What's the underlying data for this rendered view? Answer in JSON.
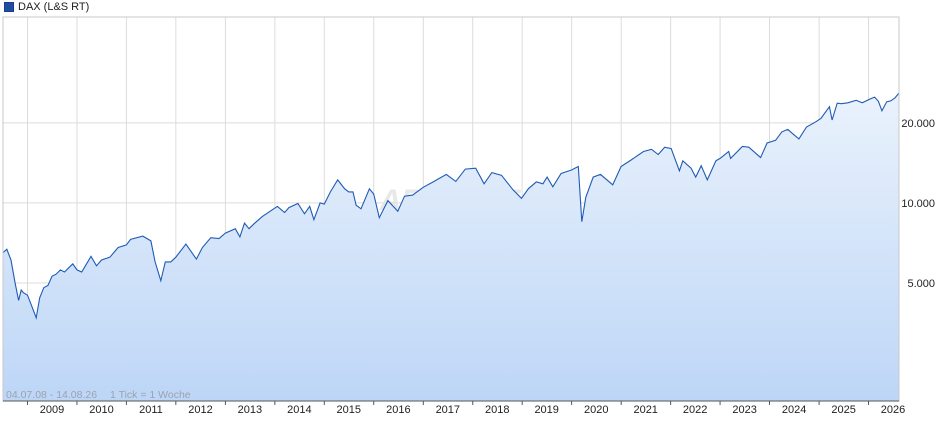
{
  "legend": {
    "label": "DAX (L&S RT)",
    "color": "#1f4e9e"
  },
  "footer": {
    "range": "04.07.08 - 14.08.26",
    "tick": "1 Tick = 1 Woche"
  },
  "watermark": "ARIVA.DE",
  "colors": {
    "line": "#1f5bb5",
    "fill_top": "#eaf2fc",
    "fill_bottom": "#bdd6f7",
    "grid": "#dcdcdc"
  },
  "chart_data": {
    "type": "area",
    "title": "",
    "xlabel": "",
    "ylabel": "",
    "y_scale": "log",
    "ylim": [
      1800,
      50000
    ],
    "xlim": [
      "2008-07-04",
      "2026-08-14"
    ],
    "x_ticks": [
      "2009",
      "2010",
      "2011",
      "2012",
      "2013",
      "2014",
      "2015",
      "2016",
      "2017",
      "2018",
      "2019",
      "2020",
      "2021",
      "2022",
      "2023",
      "2024",
      "2025",
      "2026"
    ],
    "y_ticks": [
      {
        "value": 5000,
        "label": "5.000"
      },
      {
        "value": 10000,
        "label": "10.000"
      },
      {
        "value": 20000,
        "label": "20.000"
      }
    ],
    "grid": true,
    "legend_position": "top-left",
    "series": [
      {
        "name": "DAX (L&S RT)",
        "x": [
          "2008-07-04",
          "2008-08-01",
          "2008-09-01",
          "2008-10-01",
          "2008-10-27",
          "2008-11-15",
          "2008-12-01",
          "2009-01-01",
          "2009-02-01",
          "2009-03-06",
          "2009-04-01",
          "2009-05-01",
          "2009-06-01",
          "2009-07-01",
          "2009-08-01",
          "2009-09-01",
          "2009-10-01",
          "2009-11-01",
          "2009-12-01",
          "2010-01-01",
          "2010-02-05",
          "2010-04-15",
          "2010-05-25",
          "2010-07-01",
          "2010-09-01",
          "2010-11-01",
          "2011-01-01",
          "2011-02-01",
          "2011-05-02",
          "2011-07-01",
          "2011-08-01",
          "2011-09-12",
          "2011-10-15",
          "2011-11-25",
          "2012-01-01",
          "2012-03-15",
          "2012-06-01",
          "2012-07-15",
          "2012-09-15",
          "2012-11-15",
          "2013-01-01",
          "2013-03-15",
          "2013-04-18",
          "2013-05-22",
          "2013-06-24",
          "2013-08-01",
          "2013-10-01",
          "2013-12-31",
          "2014-01-20",
          "2014-03-14",
          "2014-04-15",
          "2014-06-20",
          "2014-08-08",
          "2014-09-15",
          "2014-10-16",
          "2014-12-01",
          "2015-01-01",
          "2015-02-15",
          "2015-04-10",
          "2015-06-01",
          "2015-07-01",
          "2015-08-01",
          "2015-08-24",
          "2015-09-29",
          "2015-11-30",
          "2016-01-01",
          "2016-02-11",
          "2016-04-15",
          "2016-06-27",
          "2016-08-15",
          "2016-10-15",
          "2016-12-31",
          "2017-03-15",
          "2017-06-20",
          "2017-08-29",
          "2017-11-07",
          "2018-01-23",
          "2018-03-26",
          "2018-05-22",
          "2018-08-01",
          "2018-10-25",
          "2018-12-27",
          "2019-02-15",
          "2019-04-15",
          "2019-06-03",
          "2019-07-04",
          "2019-08-15",
          "2019-10-15",
          "2019-12-31",
          "2020-02-19",
          "2020-03-16",
          "2020-04-15",
          "2020-06-08",
          "2020-08-01",
          "2020-10-30",
          "2020-12-31",
          "2021-03-15",
          "2021-06-15",
          "2021-08-13",
          "2021-10-01",
          "2021-11-18",
          "2022-01-05",
          "2022-03-07",
          "2022-04-01",
          "2022-06-01",
          "2022-07-05",
          "2022-08-15",
          "2022-09-29",
          "2022-12-01",
          "2023-01-01",
          "2023-03-06",
          "2023-03-20",
          "2023-06-15",
          "2023-08-01",
          "2023-10-27",
          "2023-12-14",
          "2024-02-15",
          "2024-04-01",
          "2024-05-15",
          "2024-06-20",
          "2024-08-05",
          "2024-09-30",
          "2024-12-09",
          "2025-01-15",
          "2025-03-18",
          "2025-04-07",
          "2025-05-15",
          "2025-06-15",
          "2025-08-01",
          "2025-10-01",
          "2025-11-15",
          "2026-01-15",
          "2026-02-15",
          "2026-03-15",
          "2026-04-10",
          "2026-05-15",
          "2026-06-15",
          "2026-07-15",
          "2026-08-14"
        ],
        "values": [
          6500,
          6700,
          6100,
          5000,
          4300,
          4700,
          4600,
          4500,
          4100,
          3700,
          4400,
          4800,
          4900,
          5300,
          5400,
          5600,
          5500,
          5700,
          5900,
          5600,
          5500,
          6300,
          5800,
          6100,
          6250,
          6800,
          6950,
          7300,
          7500,
          7200,
          6000,
          5100,
          6000,
          6000,
          6250,
          7000,
          6150,
          6800,
          7400,
          7350,
          7700,
          8000,
          7450,
          8400,
          8000,
          8350,
          8900,
          9550,
          9700,
          9200,
          9600,
          9950,
          9100,
          9700,
          8650,
          10000,
          9900,
          11000,
          12200,
          11300,
          11000,
          11000,
          9800,
          9500,
          11300,
          10800,
          8800,
          10200,
          9300,
          10600,
          10700,
          11450,
          12000,
          12800,
          12050,
          13400,
          13500,
          11800,
          13000,
          12700,
          11200,
          10400,
          11300,
          12000,
          11800,
          12500,
          11500,
          12900,
          13300,
          13700,
          8500,
          10500,
          12500,
          12800,
          11700,
          13700,
          14500,
          15600,
          15900,
          15200,
          16200,
          16000,
          13200,
          14400,
          13500,
          12500,
          13800,
          12200,
          14400,
          14700,
          15600,
          14700,
          16300,
          16200,
          14800,
          16800,
          17200,
          18500,
          18900,
          18200,
          17400,
          19300,
          20200,
          20800,
          23000,
          20500,
          23700,
          23600,
          23800,
          24300,
          23800,
          24600,
          25000,
          24100,
          22200,
          24000,
          24200,
          24800,
          25900
        ]
      }
    ]
  }
}
